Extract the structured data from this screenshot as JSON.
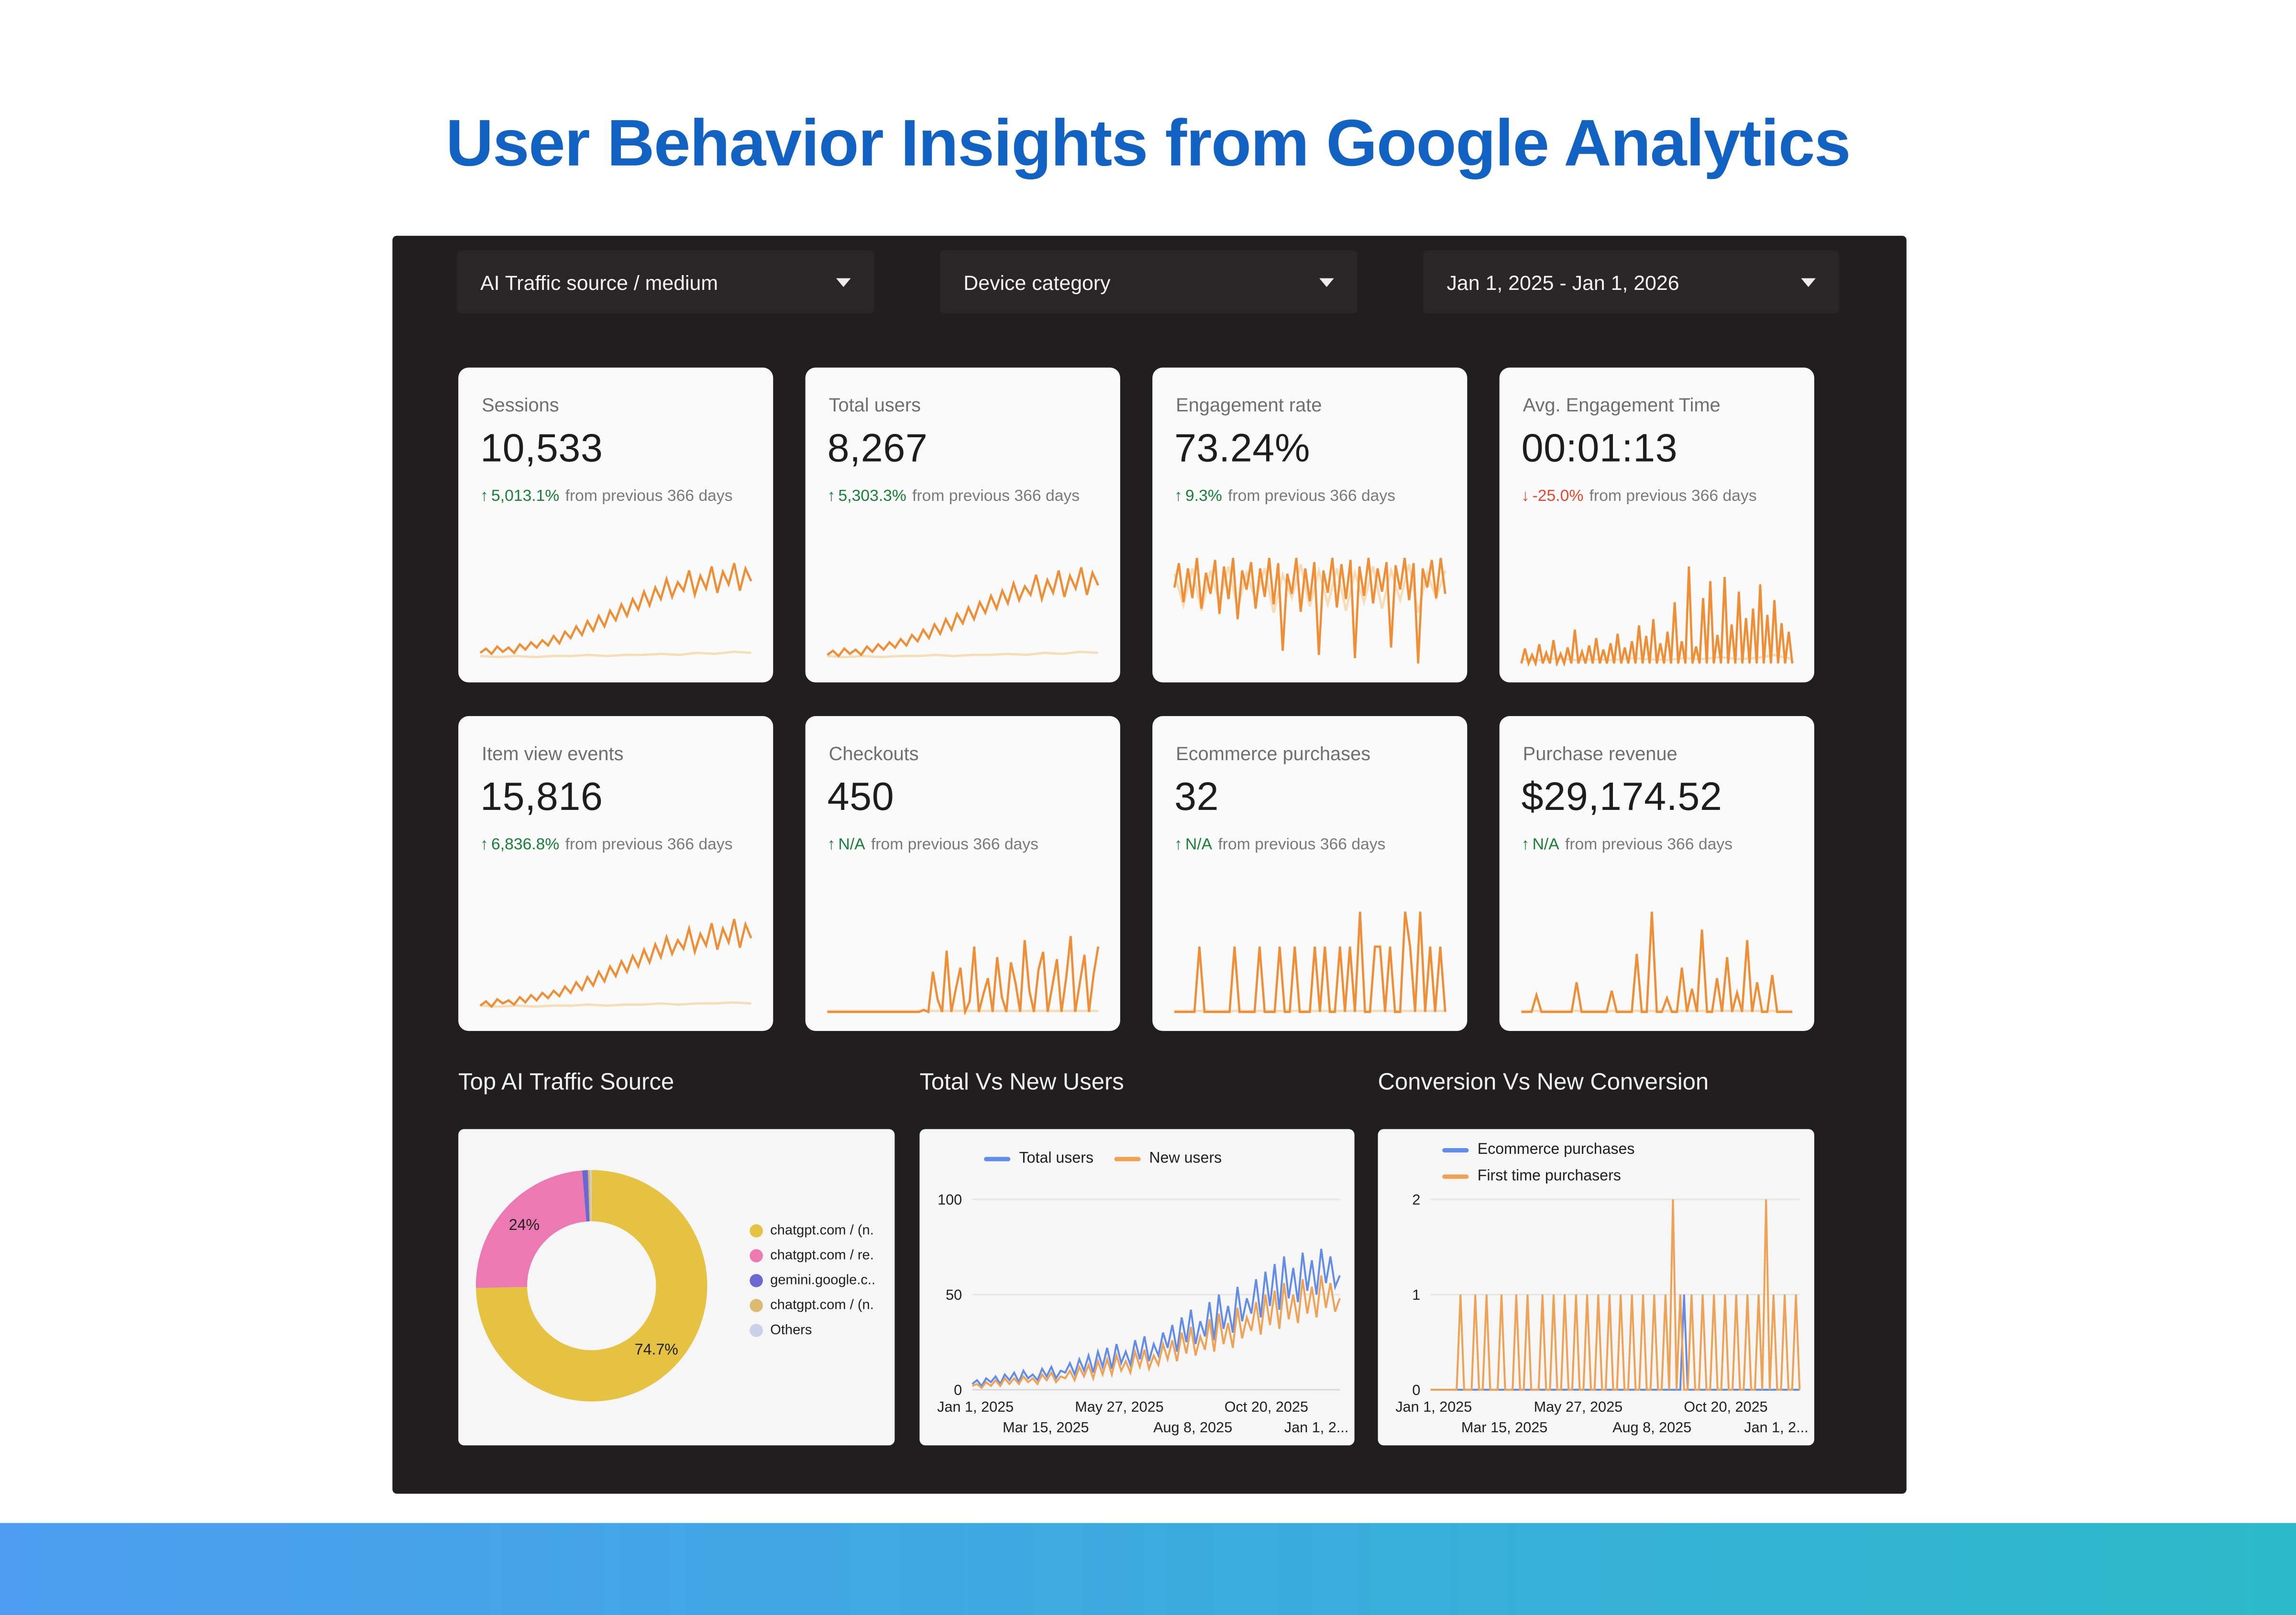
{
  "title": "User Behavior Insights from Google Analytics",
  "filters": [
    {
      "label": "AI Traffic source / medium"
    },
    {
      "label": "Device category"
    },
    {
      "label": "Jan 1, 2025 - Jan 1, 2026"
    }
  ],
  "comparison_suffix": "from previous 366 days",
  "colors": {
    "title_blue": "#1262C4",
    "panel_bg": "#211E1F",
    "spark_main": "#EF8E35",
    "spark_prev": "#F7DCB8",
    "line_blue": "#628CEA",
    "line_orange": "#EFA154",
    "delta_up_green": "#188038",
    "delta_down_red": "#E8472B",
    "footer_gradient": [
      "#4D9EF0",
      "#2CBAC9"
    ]
  },
  "scorecards": [
    {
      "label": "Sessions",
      "value": "10,533",
      "delta": "5,013.1%",
      "direction": "up",
      "spark": {
        "values": [
          10,
          14,
          9,
          16,
          11,
          15,
          10,
          18,
          13,
          20,
          15,
          22,
          17,
          26,
          19,
          30,
          24,
          35,
          27,
          40,
          31,
          45,
          35,
          50,
          41,
          56,
          45,
          61,
          51,
          68,
          55,
          72,
          61,
          80,
          63,
          77,
          69,
          88,
          65,
          83,
          71,
          92,
          67,
          87,
          75,
          95,
          69,
          90,
          78
        ],
        "prev": [
          7,
          6,
          7,
          6,
          7,
          7,
          8,
          7,
          8,
          8,
          9,
          8,
          10,
          9,
          11,
          10
        ]
      }
    },
    {
      "label": "Total users",
      "value": "8,267",
      "delta": "5,303.3%",
      "direction": "up",
      "spark": {
        "values": [
          8,
          12,
          7,
          14,
          9,
          13,
          8,
          16,
          11,
          18,
          13,
          20,
          15,
          23,
          17,
          27,
          21,
          32,
          24,
          37,
          28,
          42,
          32,
          47,
          38,
          53,
          42,
          58,
          48,
          64,
          52,
          69,
          57,
          76,
          60,
          73,
          65,
          84,
          61,
          79,
          67,
          88,
          63,
          83,
          71,
          91,
          65,
          86,
          74
        ],
        "prev": [
          7,
          6,
          7,
          6,
          7,
          7,
          8,
          7,
          8,
          8,
          9,
          8,
          10,
          9,
          11,
          10
        ]
      }
    },
    {
      "label": "Engagement rate",
      "value": "73.24%",
      "delta": "9.3%",
      "direction": "up",
      "spark": {
        "values": [
          72,
          95,
          58,
          90,
          62,
          100,
          52,
          86,
          66,
          98,
          47,
          92,
          61,
          100,
          42,
          88,
          70,
          96,
          52,
          90,
          63,
          100,
          56,
          95,
          12,
          85,
          66,
          100,
          49,
          90,
          59,
          96,
          8,
          88,
          67,
          100,
          53,
          94,
          61,
          98,
          5,
          92,
          64,
          100,
          57,
          90,
          68,
          96,
          15,
          93,
          70,
          100,
          60,
          95,
          0,
          90,
          72,
          98,
          62,
          100,
          66
        ],
        "prev": [
          85,
          55,
          90,
          50,
          88,
          58,
          92,
          52,
          86,
          60,
          90,
          48,
          84,
          62,
          94,
          54,
          88,
          56,
          90,
          50,
          86,
          58,
          92,
          52,
          88,
          60,
          94,
          48,
          86,
          62,
          88
        ]
      }
    },
    {
      "label": "Avg. Engagement Time",
      "value": "00:01:13",
      "delta": "-25.0%",
      "direction": "down",
      "spark": {
        "values": [
          0,
          14,
          0,
          8,
          0,
          18,
          0,
          10,
          0,
          22,
          0,
          9,
          0,
          15,
          0,
          32,
          0,
          11,
          0,
          17,
          0,
          24,
          0,
          13,
          0,
          19,
          0,
          28,
          0,
          15,
          0,
          21,
          0,
          36,
          0,
          26,
          0,
          42,
          0,
          19,
          0,
          30,
          0,
          58,
          0,
          21,
          0,
          92,
          0,
          16,
          0,
          62,
          0,
          78,
          0,
          27,
          0,
          82,
          0,
          37,
          0,
          68,
          0,
          43,
          0,
          52,
          0,
          75,
          0,
          46,
          0,
          60,
          0,
          38,
          0,
          30,
          0
        ],
        "prev": [
          4,
          3,
          5,
          3,
          4,
          3,
          5,
          4,
          3,
          5,
          4,
          6,
          4,
          5,
          8,
          4
        ]
      }
    },
    {
      "label": "Item view events",
      "value": "15,816",
      "delta": "6,836.8%",
      "direction": "up",
      "spark": {
        "values": [
          6,
          10,
          5,
          12,
          8,
          11,
          7,
          14,
          9,
          16,
          11,
          18,
          13,
          20,
          15,
          24,
          18,
          28,
          21,
          33,
          25,
          38,
          29,
          43,
          34,
          48,
          38,
          53,
          43,
          59,
          47,
          64,
          52,
          71,
          55,
          68,
          60,
          79,
          57,
          74,
          63,
          84,
          59,
          79,
          66,
          88,
          61,
          83,
          70
        ],
        "prev": [
          6,
          5,
          6,
          5,
          6,
          6,
          7,
          6,
          7,
          7,
          8,
          7,
          8,
          8,
          9,
          8
        ]
      }
    },
    {
      "label": "Checkouts",
      "value": "450",
      "delta": "N/A",
      "direction": "up",
      "spark": {
        "values": [
          0,
          0,
          0,
          0,
          0,
          0,
          0,
          0,
          0,
          0,
          0,
          0,
          0,
          0,
          0,
          0,
          0,
          0,
          0,
          0,
          0,
          2,
          0,
          38,
          12,
          0,
          58,
          0,
          22,
          42,
          0,
          10,
          62,
          0,
          17,
          32,
          0,
          52,
          14,
          0,
          47,
          27,
          0,
          68,
          20,
          0,
          40,
          57,
          0,
          24,
          50,
          0,
          32,
          72,
          0,
          28,
          54,
          0,
          36,
          62
        ],
        "prev": [
          1,
          1
        ]
      }
    },
    {
      "label": "Ecommerce purchases",
      "value": "32",
      "delta": "N/A",
      "direction": "up",
      "spark": {
        "values": [
          0,
          0,
          0,
          0,
          0,
          62,
          0,
          0,
          0,
          0,
          0,
          0,
          62,
          0,
          0,
          0,
          0,
          62,
          0,
          0,
          0,
          62,
          0,
          0,
          62,
          0,
          0,
          0,
          62,
          0,
          62,
          0,
          0,
          62,
          0,
          62,
          0,
          95,
          0,
          0,
          62,
          62,
          0,
          62,
          0,
          0,
          95,
          62,
          0,
          95,
          0,
          62,
          0,
          62,
          0
        ],
        "prev": [
          1,
          1
        ]
      }
    },
    {
      "label": "Purchase revenue",
      "value": "$29,174.52",
      "delta": "N/A",
      "direction": "up",
      "spark": {
        "values": [
          0,
          0,
          0,
          16,
          0,
          0,
          0,
          0,
          0,
          0,
          0,
          28,
          0,
          0,
          0,
          0,
          0,
          0,
          20,
          0,
          0,
          0,
          0,
          55,
          0,
          0,
          95,
          0,
          0,
          13,
          0,
          0,
          42,
          0,
          22,
          0,
          78,
          0,
          0,
          32,
          0,
          52,
          0,
          18,
          0,
          68,
          0,
          28,
          0,
          0,
          35,
          0,
          0,
          0,
          0
        ],
        "prev": [
          1,
          1
        ]
      }
    }
  ],
  "sections": [
    "Top AI Traffic Source",
    "Total Vs New Users",
    "Conversion Vs New Conversion"
  ],
  "chart_data": [
    {
      "type": "pie",
      "title": "Top AI Traffic Source",
      "labels": [
        "chatgpt.com / (n.",
        "chatgpt.com / re.",
        "gemini.google.c..",
        "chatgpt.com / (n.",
        "Others"
      ],
      "values": [
        74.7,
        24,
        0.8,
        0.3,
        0.2
      ],
      "slice_labels": [
        "74.7%",
        "24%",
        "",
        "",
        ""
      ],
      "colors": [
        "#E5C242",
        "#EC79B2",
        "#6A69D1",
        "#DCBA72",
        "#C9D0EA"
      ],
      "legend_position": "right",
      "donut": true
    },
    {
      "type": "line",
      "title": "Total Vs New Users",
      "legend": [
        "Total users",
        "New users"
      ],
      "legend_colors": [
        "#628CEA",
        "#EFA154"
      ],
      "ylim": [
        0,
        100
      ],
      "yticks": [
        "0",
        "50",
        "100"
      ],
      "xticks_row1": [
        "Jan 1, 2025",
        "May 27, 2025",
        "Oct 20, 2025"
      ],
      "xticks_row2": [
        "Mar 15, 2025",
        "Aug 8, 2025",
        "Jan 1, 2..."
      ],
      "series": [
        {
          "name": "Total users",
          "values": [
            3,
            5,
            2,
            6,
            4,
            7,
            3,
            8,
            5,
            9,
            4,
            10,
            6,
            8,
            5,
            11,
            7,
            12,
            6,
            10,
            9,
            14,
            8,
            16,
            10,
            18,
            9,
            20,
            12,
            22,
            11,
            24,
            14,
            20,
            13,
            26,
            16,
            28,
            15,
            24,
            18,
            30,
            22,
            34,
            20,
            38,
            25,
            42,
            24,
            36,
            28,
            46,
            26,
            50,
            32,
            44,
            30,
            54,
            36,
            48,
            40,
            58,
            38,
            62,
            44,
            66,
            42,
            70,
            48,
            64,
            46,
            72,
            52,
            68,
            50,
            74,
            56,
            70,
            54,
            60
          ]
        },
        {
          "name": "New users",
          "values": [
            2,
            3,
            1,
            4,
            2,
            5,
            2,
            6,
            3,
            6,
            3,
            7,
            4,
            6,
            3,
            8,
            5,
            9,
            4,
            7,
            6,
            10,
            5,
            12,
            7,
            13,
            6,
            15,
            8,
            16,
            8,
            18,
            10,
            15,
            9,
            20,
            12,
            21,
            11,
            18,
            13,
            24,
            16,
            26,
            15,
            30,
            19,
            33,
            18,
            28,
            21,
            37,
            20,
            40,
            24,
            35,
            22,
            43,
            27,
            38,
            31,
            46,
            29,
            50,
            34,
            52,
            32,
            56,
            37,
            50,
            35,
            58,
            40,
            54,
            38,
            60,
            43,
            56,
            41,
            48
          ]
        }
      ]
    },
    {
      "type": "line",
      "title": "Conversion Vs New Conversion",
      "legend": [
        "Ecommerce purchases",
        "First time purchasers"
      ],
      "legend_colors": [
        "#628CEA",
        "#EFA154"
      ],
      "ylim": [
        0,
        2
      ],
      "yticks": [
        "0",
        "1",
        "2"
      ],
      "xticks_row1": [
        "Jan 1, 2025",
        "May 27, 2025",
        "Oct 20, 2025"
      ],
      "xticks_row2": [
        "Mar 15, 2025",
        "Aug 8, 2025",
        "Jan 1, 2..."
      ],
      "n_points": 100,
      "series": [
        {
          "name": "Ecommerce purchases",
          "spikes": {
            "1": [
              68
            ]
          }
        },
        {
          "name": "First time purchasers",
          "spikes": {
            "1": [
              8,
              12,
              15,
              19,
              23,
              26,
              30,
              33,
              36,
              39,
              42,
              45,
              48,
              51,
              54,
              57,
              60,
              63,
              67,
              70,
              73,
              76,
              79,
              82,
              85,
              88,
              92,
              95,
              98
            ],
            "2": [
              65,
              90
            ]
          }
        }
      ]
    }
  ]
}
